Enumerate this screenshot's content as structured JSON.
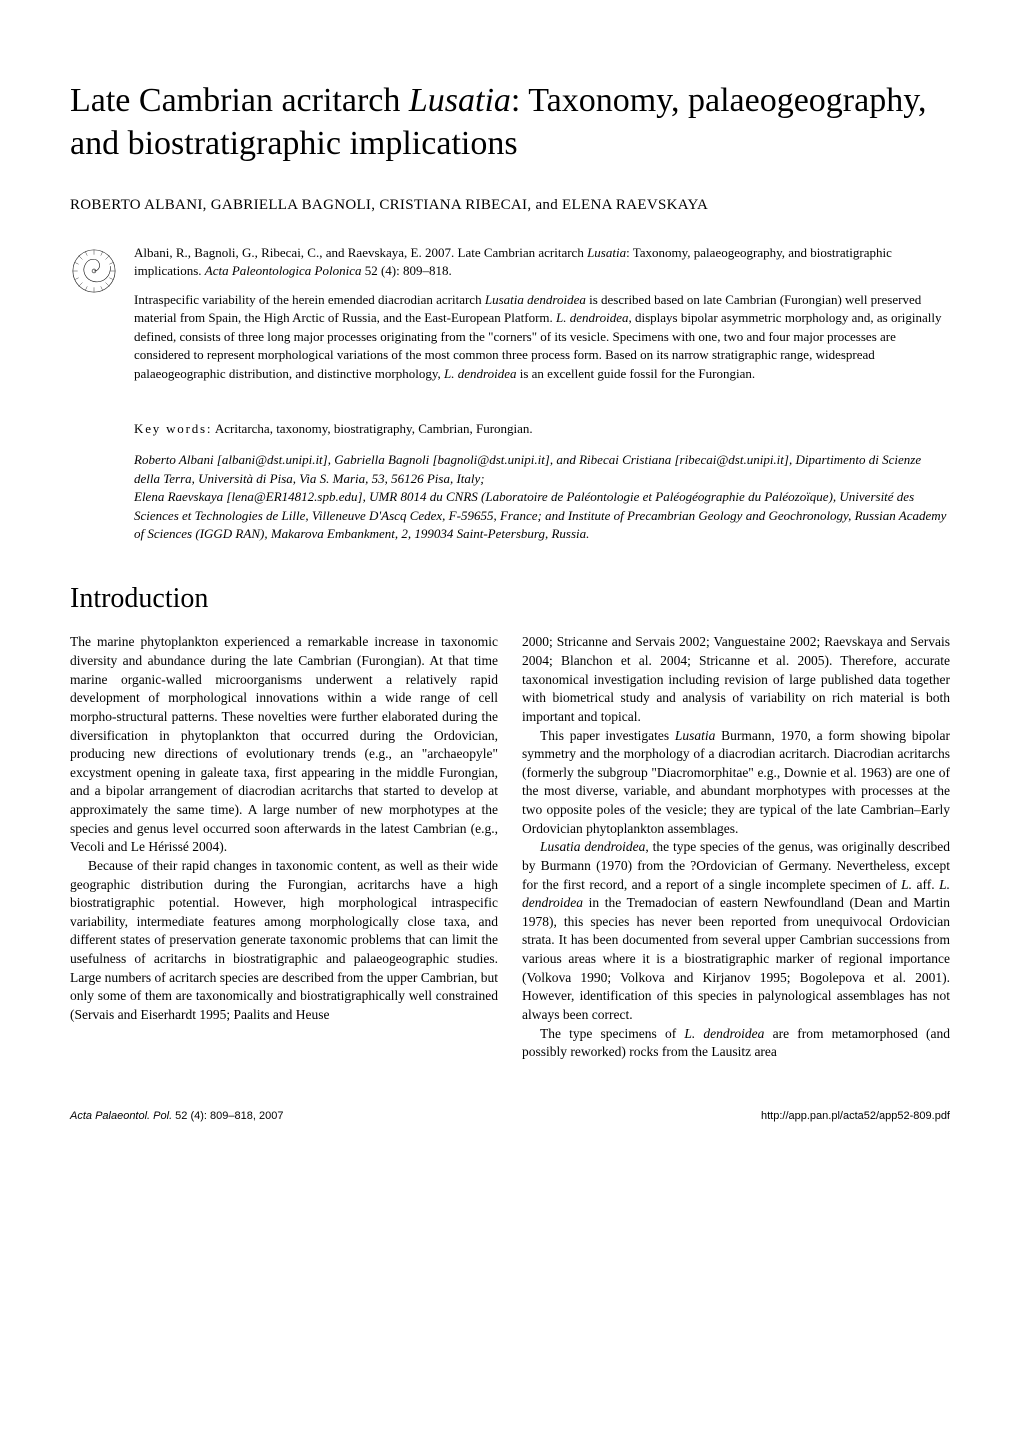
{
  "title": "Late Cambrian acritarch <i>Lusatia</i>: Taxonomy, palaeogeography, and biostratigraphic implications",
  "authors": "ROBERTO ALBANI, GABRIELLA BAGNOLI, CRISTIANA RIBECAI, and ELENA RAEVSKAYA",
  "abstract": {
    "citation": "Albani, R., Bagnoli, G., Ribecai, C., and Raevskaya, E. 2007. Late Cambrian acritarch <i>Lusatia</i>: Taxonomy, palaeogeography, and biostratigraphic implications. <i>Acta Paleontologica Polonica</i> 52 (4): 809–818.",
    "summary": "Intraspecific variability of the herein emended diacrodian acritarch <i>Lusatia dendroidea</i> is described based on late Cambrian (Furongian) well preserved material from Spain, the High Arctic of Russia, and the East-European Platform. <i>L. dendroidea</i>, displays bipolar asymmetric morphology and, as originally defined, consists of three long major processes originating from the \"corners\" of its vesicle. Specimens with one, two and four major processes are considered to represent morphological variations of the most common three process form. Based on its narrow stratigraphic range, widespread palaeogeographic distribution, and distinctive morphology, <i>L. dendroidea</i> is an excellent guide fossil for the Furongian."
  },
  "keywords": {
    "label": "Key words:",
    "text": "Acritarcha, taxonomy, biostratigraphy, Cambrian, Furongian."
  },
  "affiliations": "Roberto Albani [albani@dst.unipi.it], Gabriella Bagnoli [bagnoli@dst.unipi.it], and Ribecai Cristiana [ribecai@dst.unipi.it], Dipartimento di Scienze della Terra, Università di Pisa, Via S. Maria, 53, 56126 Pisa, Italy;<br>Elena Raevskaya [lena@ER14812.spb.edu], UMR 8014 du CNRS (Laboratoire de Paléontologie et Paléogéographie du Paléozoïque), Université des Sciences et Technologies de Lille, Villeneuve D'Ascq Cedex, F-59655, France; and Institute of Precambrian Geology and Geochronology, Russian Academy of Sciences (IGGD RAN), Makarova Embankment, 2, 199034 Saint-Petersburg, Russia.",
  "section_heading": "Introduction",
  "body": {
    "left": {
      "p1": "The marine phytoplankton experienced a remarkable increase in taxonomic diversity and abundance during the late Cambrian (Furongian). At that time marine organic-walled microorganisms underwent a relatively rapid development of morphological innovations within a wide range of cell morpho-structural patterns. These novelties were further elaborated during the diversification in phytoplankton that occurred during the Ordovician, producing new directions of evolutionary trends (e.g., an \"archaeopyle\" excystment opening in galeate taxa, first appearing in the middle Furongian, and a bipolar arrangement of diacrodian acritarchs that started to develop at approximately the same time). A large number of new morphotypes at the species and genus level occurred soon afterwards in the latest Cambrian (e.g., Vecoli and Le Hérissé 2004).",
      "p2": "Because of their rapid changes in taxonomic content, as well as their wide geographic distribution during the Furongian, acritarchs have a high biostratigraphic potential. However, high morphological intraspecific variability, intermediate features among morphologically close taxa, and different states of preservation generate taxonomic problems that can limit the usefulness of acritarchs in biostratigraphic and palaeogeographic studies. Large numbers of acritarch species are described from the upper Cambrian, but only some of them are taxonomically and biostratigraphically well constrained (Servais and Eiserhardt 1995; Paalits and Heuse"
    },
    "right": {
      "p1": "2000; Stricanne and Servais 2002; Vanguestaine 2002; Raevskaya and Servais 2004; Blanchon et al. 2004; Stricanne et al. 2005). Therefore, accurate taxonomical investigation including revision of large published data together with biometrical study and analysis of variability on rich material is both important and topical.",
      "p2": "This paper investigates <i>Lusatia</i> Burmann, 1970, a form showing bipolar symmetry and the morphology of a diacrodian acritarch. Diacrodian acritarchs (formerly the subgroup \"Diacromorphitae\" e.g., Downie et al. 1963) are one of the most diverse, variable, and abundant morphotypes with processes at the two opposite poles of the vesicle; they are typical of the late Cambrian–Early Ordovician phytoplankton assemblages.",
      "p3": "<i>Lusatia dendroidea</i>, the type species of the genus, was originally described by Burmann (1970) from the ?Ordovician of Germany. Nevertheless, except for the first record, and a report of a single incomplete specimen of <i>L.</i> aff. <i>L. dendroidea</i> in the Tremadocian of eastern Newfoundland (Dean and Martin 1978), this species has never been reported from unequivocal Ordovician strata. It has been documented from several upper Cambrian successions from various areas where it is a biostratigraphic marker of regional importance (Volkova 1990; Volkova and Kirjanov 1995; Bogolepova et al. 2001). However, identification of this species in palynological assemblages has not always been correct.",
      "p4": "The type specimens of <i>L. dendroidea</i> are from metamorphosed (and possibly reworked) rocks from the Lausitz area"
    }
  },
  "footer": {
    "left_italic": "Acta Palaeontol. Pol.",
    "left_normal": " 52 (4): 809–818, 2007",
    "right": "http://app.pan.pl/acta52/app52-809.pdf"
  },
  "colors": {
    "text": "#000000",
    "background": "#ffffff"
  },
  "typography": {
    "title_fontsize": 34,
    "authors_fontsize": 15,
    "abstract_fontsize": 13,
    "section_heading_fontsize": 28,
    "body_fontsize": 13.5,
    "footer_fontsize": 11
  }
}
